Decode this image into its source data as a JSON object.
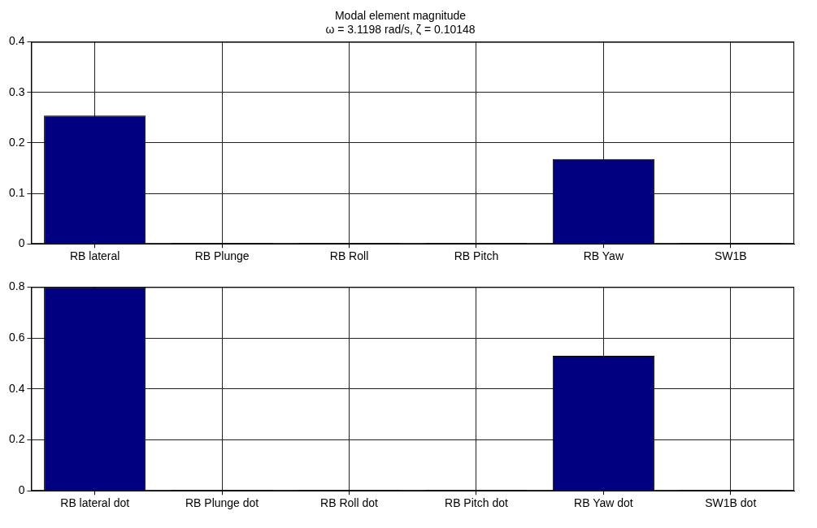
{
  "chart_data": [
    {
      "type": "bar",
      "title": "Modal element magnitude",
      "subtitle": "ω = 3.1198 rad/s, ζ = 0.10148",
      "categories": [
        "RB lateral",
        "RB Plunge",
        "RB Roll",
        "RB Pitch",
        "RB Yaw",
        "SW1B"
      ],
      "values": [
        0.254,
        0.002,
        0.002,
        0.002,
        0.168,
        0.002
      ],
      "color": "#000080",
      "ylim": [
        0,
        0.4
      ],
      "yticks": [
        0,
        0.1,
        0.2,
        0.3,
        0.4
      ],
      "grid": true,
      "legend": false
    },
    {
      "type": "bar",
      "categories": [
        "RB lateral dot",
        "RB Plunge dot",
        "RB Roll dot",
        "RB Pitch dot",
        "RB Yaw dot",
        "SW1B dot"
      ],
      "values": [
        0.8,
        0.004,
        0.004,
        0.004,
        0.53,
        0.004
      ],
      "color": "#000080",
      "ylim": [
        0,
        0.8
      ],
      "yticks": [
        0,
        0.2,
        0.4,
        0.6,
        0.8
      ],
      "grid": true,
      "legend": false
    }
  ]
}
